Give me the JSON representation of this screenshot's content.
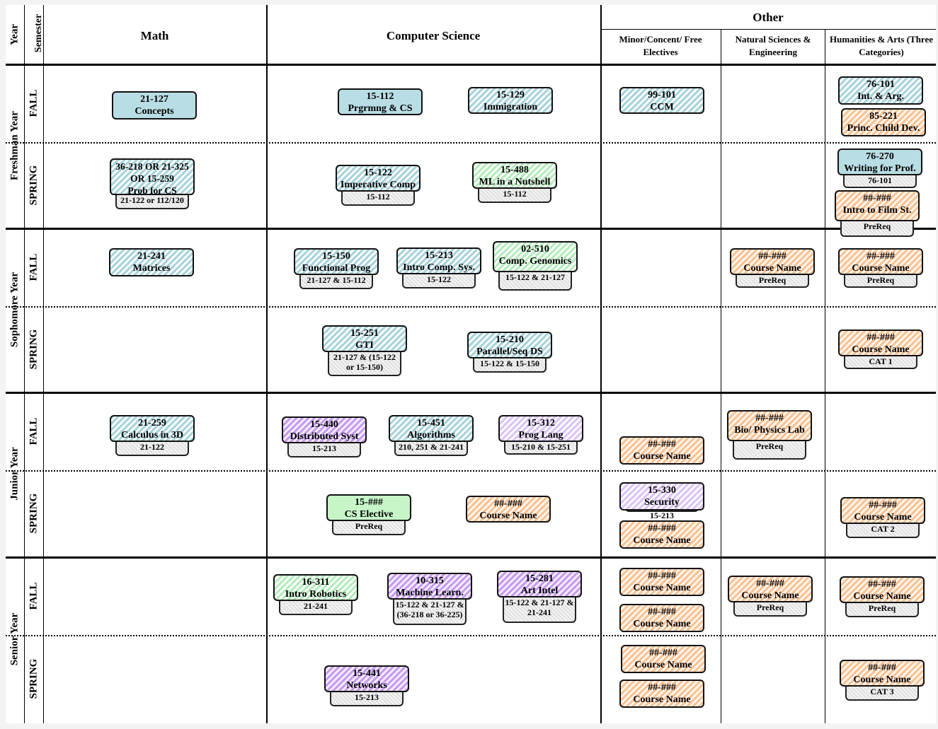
{
  "headers": {
    "year": "Year",
    "semester": "Semester",
    "math": "Math",
    "cs": "Computer Science",
    "other": "Other",
    "minor": "Minor/Concent/ Free Electives",
    "natsci": "Natural Sciences & Engineering",
    "hum": "Humanities & Arts (Three Categories)"
  },
  "years": [
    "Freshman Year",
    "Sophomore Year",
    "Junior Year",
    "Senior Year"
  ],
  "semesters": [
    "FALL",
    "SPRING",
    "FALL",
    "SPRING",
    "FALL",
    "SPRING",
    "FALL",
    "SPRING"
  ],
  "colors": {
    "teal": "#a8d3dc",
    "green": "#b4ecbb",
    "purple": "#c79cf0",
    "lavender": "#dcc4f6",
    "orange": "#f9c395"
  },
  "courses": [
    {
      "l1": "21-127",
      "l2": "Concepts",
      "style": "teal-solid"
    },
    {
      "l1": "15-112",
      "l2": "Prgrmng & CS",
      "style": "teal-solid"
    },
    {
      "l1": "15-129",
      "l2": "Immigration",
      "style": "teal"
    },
    {
      "l1": "99-101",
      "l2": "CCM",
      "style": "teal"
    },
    {
      "l1": "76-101",
      "l2": "Int. & Arg.",
      "style": "teal"
    },
    {
      "l1": "85-221",
      "l2": "Princ. Child Dev.",
      "style": "orange"
    },
    {
      "l1": "36-218 OR 21-325 OR 15-259",
      "l2": "Prob for CS",
      "pre": "21-122 or 112/120",
      "style": "teal"
    },
    {
      "l1": "15-122",
      "l2": "Imperative Comp",
      "pre": "15-112",
      "style": "teal"
    },
    {
      "l1": "15-488",
      "l2": "ML in a Nutshell",
      "pre": "15-112",
      "style": "green"
    },
    {
      "l1": "76-270",
      "l2": "Writing for Prof.",
      "pre": "76-101",
      "style": "teal-solid"
    },
    {
      "l1": "##-###",
      "l2": "Intro to Film St.",
      "pre": "PreReq",
      "style": "orange"
    },
    {
      "l1": "21-241",
      "l2": "Matrices",
      "style": "teal"
    },
    {
      "l1": "15-150",
      "l2": "Functional Prog",
      "pre": "21-127 & 15-112",
      "style": "teal"
    },
    {
      "l1": "15-213",
      "l2": "Intro Comp. Sys.",
      "pre": "15-122",
      "style": "teal"
    },
    {
      "l1": "02-510",
      "l2": "Comp. Genomics",
      "pre": "15-122 & 21-127",
      "style": "green"
    },
    {
      "l1": "##-###",
      "l2": "Course Name",
      "pre": "PreReq",
      "style": "orange"
    },
    {
      "l1": "##-###",
      "l2": "Course Name",
      "pre": "PreReq",
      "style": "orange"
    },
    {
      "l1": "15-251",
      "l2": "GTI",
      "pre": "21-127 & (15-122 or 15-150)",
      "style": "teal"
    },
    {
      "l1": "15-210",
      "l2": "Parallel/Seq DS",
      "pre": "15-122 & 15-150",
      "style": "teal"
    },
    {
      "l1": "##-###",
      "l2": "Course Name",
      "pre": "CAT 1",
      "style": "orange"
    },
    {
      "l1": "21-259",
      "l2": "Calculus in 3D",
      "pre": "21-122",
      "style": "teal"
    },
    {
      "l1": "15-440",
      "l2": "Distributed Syst",
      "pre": "15-213",
      "style": "purple"
    },
    {
      "l1": "15-451",
      "l2": "Algorithms",
      "pre": "210, 251 & 21-241",
      "style": "teal"
    },
    {
      "l1": "15-312",
      "l2": "Prog Lang",
      "pre": "15-210 & 15-251",
      "style": "lavender"
    },
    {
      "l1": "##-###",
      "l2": "Course Name",
      "style": "orange"
    },
    {
      "l1": "##-###",
      "l2": "Bio/ Physics Lab",
      "pre": "PreReq",
      "style": "orange"
    },
    {
      "l1": "15-330",
      "l2": "Security",
      "pre": "15-213",
      "style": "lavender"
    },
    {
      "l1": "15-###",
      "l2": "CS Elective",
      "pre": "PreReq",
      "style": "green-solid"
    },
    {
      "l1": "##-###",
      "l2": "Course Name",
      "style": "orange"
    },
    {
      "l1": "##-###",
      "l2": "Course Name",
      "style": "orange"
    },
    {
      "l1": "##-###",
      "l2": "Course Name",
      "pre": "CAT 2",
      "style": "orange"
    },
    {
      "l1": "16-311",
      "l2": "Intro Robotics",
      "pre": "21-241",
      "style": "green"
    },
    {
      "l1": "10-315",
      "l2": "Machine Learn.",
      "pre": "15-122 & 21-127 & (36-218 or 36-225)",
      "style": "purple"
    },
    {
      "l1": "15-281",
      "l2": "Art Intel",
      "pre": "15-122 & 21-127 & 21-241",
      "style": "purple"
    },
    {
      "l1": "##-###",
      "l2": "Course Name",
      "style": "orange"
    },
    {
      "l1": "##-###",
      "l2": "Course Name",
      "style": "orange"
    },
    {
      "l1": "##-###",
      "l2": "Course Name",
      "pre": "PreReq",
      "style": "orange"
    },
    {
      "l1": "##-###",
      "l2": "Course Name",
      "pre": "PreReq",
      "style": "orange"
    },
    {
      "l1": "15-441",
      "l2": "Networks",
      "pre": "15-213",
      "style": "purple"
    },
    {
      "l1": "##-###",
      "l2": "Course Name",
      "style": "orange"
    },
    {
      "l1": "##-###",
      "l2": "Course Name",
      "style": "orange"
    },
    {
      "l1": "##-###",
      "l2": "Course Name",
      "pre": "CAT 3",
      "style": "orange"
    }
  ]
}
